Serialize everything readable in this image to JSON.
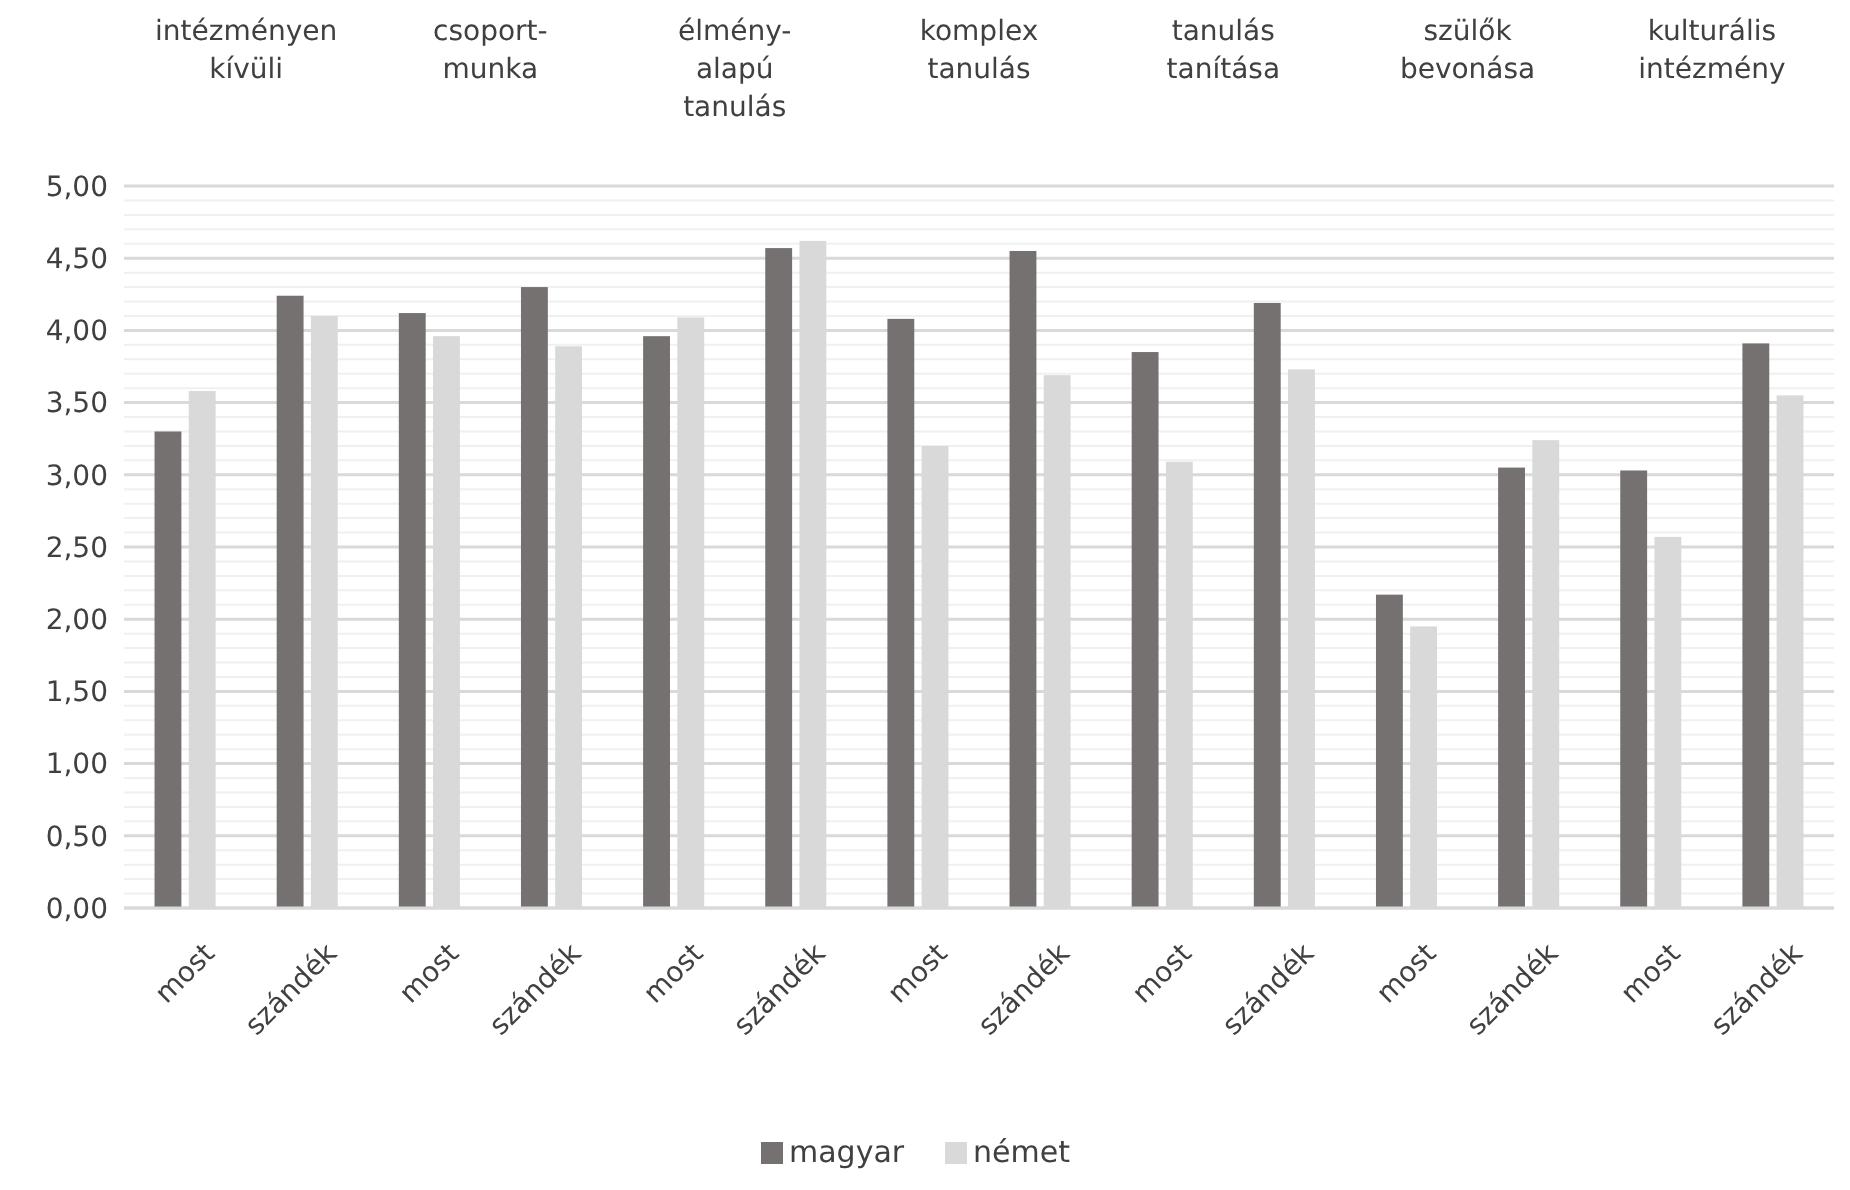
{
  "chart_data": {
    "type": "bar",
    "categories": [
      "most",
      "szándék",
      "most",
      "szándék",
      "most",
      "szándék",
      "most",
      "szándék",
      "most",
      "szándék",
      "most",
      "szándék",
      "most",
      "szándék"
    ],
    "series": [
      {
        "name": "magyar",
        "color": "#767171",
        "values": [
          3.3,
          4.24,
          4.12,
          4.3,
          3.96,
          4.57,
          4.08,
          4.55,
          3.85,
          4.19,
          2.17,
          3.05,
          3.03,
          3.91
        ]
      },
      {
        "name": "német",
        "color": "#d9d9d9",
        "values": [
          3.58,
          4.1,
          3.96,
          3.89,
          4.09,
          4.62,
          3.2,
          3.69,
          3.09,
          3.73,
          1.95,
          3.24,
          2.57,
          3.55
        ]
      }
    ],
    "annotations": [
      "intézményen kívüli",
      "csoport-munka",
      "élmény-alapú tanulás",
      "komplex tanulás",
      "tanulás tanítása",
      "szülők bevonása",
      "kulturális intézmény"
    ],
    "ylim": [
      0,
      5
    ],
    "yticks": [
      {
        "value": 0,
        "label": "0,00"
      },
      {
        "value": 0.1,
        "label": null
      },
      {
        "value": 0.2,
        "label": null
      },
      {
        "value": 0.3,
        "label": null
      },
      {
        "value": 0.4,
        "label": null
      },
      {
        "value": 0.5,
        "label": "0,50"
      },
      {
        "value": 0.6,
        "label": null
      },
      {
        "value": 0.7,
        "label": null
      },
      {
        "value": 0.8,
        "label": null
      },
      {
        "value": 0.9,
        "label": null
      },
      {
        "value": 1,
        "label": "1,00"
      },
      {
        "value": 1.1,
        "label": null
      },
      {
        "value": 1.2,
        "label": null
      },
      {
        "value": 1.3,
        "label": null
      },
      {
        "value": 1.4,
        "label": null
      },
      {
        "value": 1.5,
        "label": "1,50"
      },
      {
        "value": 1.6,
        "label": null
      },
      {
        "value": 1.7,
        "label": null
      },
      {
        "value": 1.8,
        "label": null
      },
      {
        "value": 1.9,
        "label": null
      },
      {
        "value": 2,
        "label": "2,00"
      },
      {
        "value": 2.1,
        "label": null
      },
      {
        "value": 2.2,
        "label": null
      },
      {
        "value": 2.3,
        "label": null
      },
      {
        "value": 2.4,
        "label": null
      },
      {
        "value": 2.5,
        "label": "2,50"
      },
      {
        "value": 2.6,
        "label": null
      },
      {
        "value": 2.7,
        "label": null
      },
      {
        "value": 2.8,
        "label": null
      },
      {
        "value": 2.9,
        "label": null
      },
      {
        "value": 3,
        "label": "3,00"
      },
      {
        "value": 3.1,
        "label": null
      },
      {
        "value": 3.2,
        "label": null
      },
      {
        "value": 3.3,
        "label": null
      },
      {
        "value": 3.4,
        "label": null
      },
      {
        "value": 3.5,
        "label": "3,50"
      },
      {
        "value": 3.6,
        "label": null
      },
      {
        "value": 3.7,
        "label": null
      },
      {
        "value": 3.8,
        "label": null
      },
      {
        "value": 3.9,
        "label": null
      },
      {
        "value": 4,
        "label": "4,00"
      },
      {
        "value": 4.1,
        "label": null
      },
      {
        "value": 4.2,
        "label": null
      },
      {
        "value": 4.3,
        "label": null
      },
      {
        "value": 4.4,
        "label": null
      },
      {
        "value": 4.5,
        "label": "4,50"
      },
      {
        "value": 4.6,
        "label": null
      },
      {
        "value": 4.7,
        "label": null
      },
      {
        "value": 4.8,
        "label": null
      },
      {
        "value": 4.9,
        "label": null
      },
      {
        "value": 5,
        "label": "5,00"
      }
    ],
    "grid": "y",
    "legend": "bottom"
  }
}
